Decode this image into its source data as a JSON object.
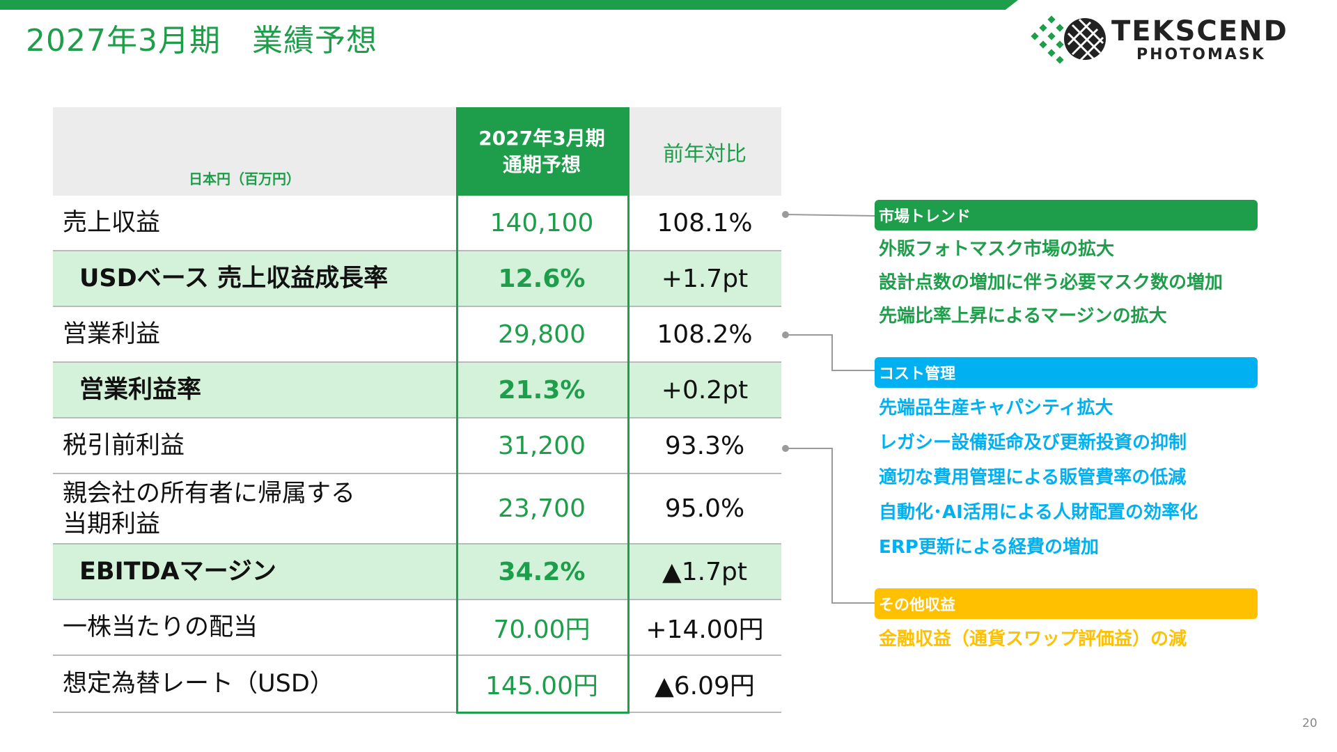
{
  "colors": {
    "green": "#1e9e4a",
    "green_light": "#d4f1d9",
    "blue": "#00b0f0",
    "yellow": "#ffc000",
    "header_gray": "#ececec"
  },
  "title": "2027年3月期　業績予想",
  "logo": {
    "icon": "tekscend-grid-logo-icon",
    "word1": "TEKSCEND",
    "word2": "PHOTOMASK"
  },
  "table": {
    "unit_label": "日本円（百万円）",
    "forecast_header": [
      "2027年3月期",
      "通期予想"
    ],
    "yoy_header": "前年対比",
    "rows": [
      {
        "label": "売上収益",
        "forecast": "140,100",
        "yoy": "108.1%",
        "highlight": false
      },
      {
        "label": "USDベース 売上収益成長率",
        "forecast": "12.6%",
        "yoy": "+1.7pt",
        "highlight": true
      },
      {
        "label": "営業利益",
        "forecast": "29,800",
        "yoy": "108.2%",
        "highlight": false
      },
      {
        "label": "営業利益率",
        "forecast": "21.3%",
        "yoy": "+0.2pt",
        "highlight": true
      },
      {
        "label": "税引前利益",
        "forecast": "31,200",
        "yoy": "93.3%",
        "highlight": false
      },
      {
        "label": "親会社の所有者に帰属する",
        "label2": "当期利益",
        "forecast": "23,700",
        "yoy": "95.0%",
        "highlight": false
      },
      {
        "label": "EBITDAマージン",
        "forecast": "34.2%",
        "yoy": "▲1.7pt",
        "highlight": true
      },
      {
        "label": "一株当たりの配当",
        "forecast": "70.00円",
        "yoy": "+14.00円",
        "highlight": false
      },
      {
        "label": "想定為替レート（USD）",
        "forecast": "145.00円",
        "yoy": "▲6.09円",
        "highlight": false
      }
    ]
  },
  "notes": [
    {
      "heading": "市場トレンド",
      "color": "#1e9e4a",
      "items": [
        "外販フォトマスク市場の拡大",
        "設計点数の増加に伴う必要マスク数の増加",
        "先端比率上昇によるマージンの拡大"
      ]
    },
    {
      "heading": "コスト管理",
      "color": "#00b0f0",
      "items": [
        "先端品生産キャパシティ拡大",
        "レガシー設備延命及び更新投資の抑制",
        "適切な費用管理による販管費率の低減",
        "自動化･AI活用による人財配置の効率化",
        "ERP更新による経費の増加"
      ]
    },
    {
      "heading": "その他収益",
      "color": "#ffc000",
      "items": [
        "金融収益（通貨スワップ評価益）の減"
      ]
    }
  ],
  "page_number": "20"
}
